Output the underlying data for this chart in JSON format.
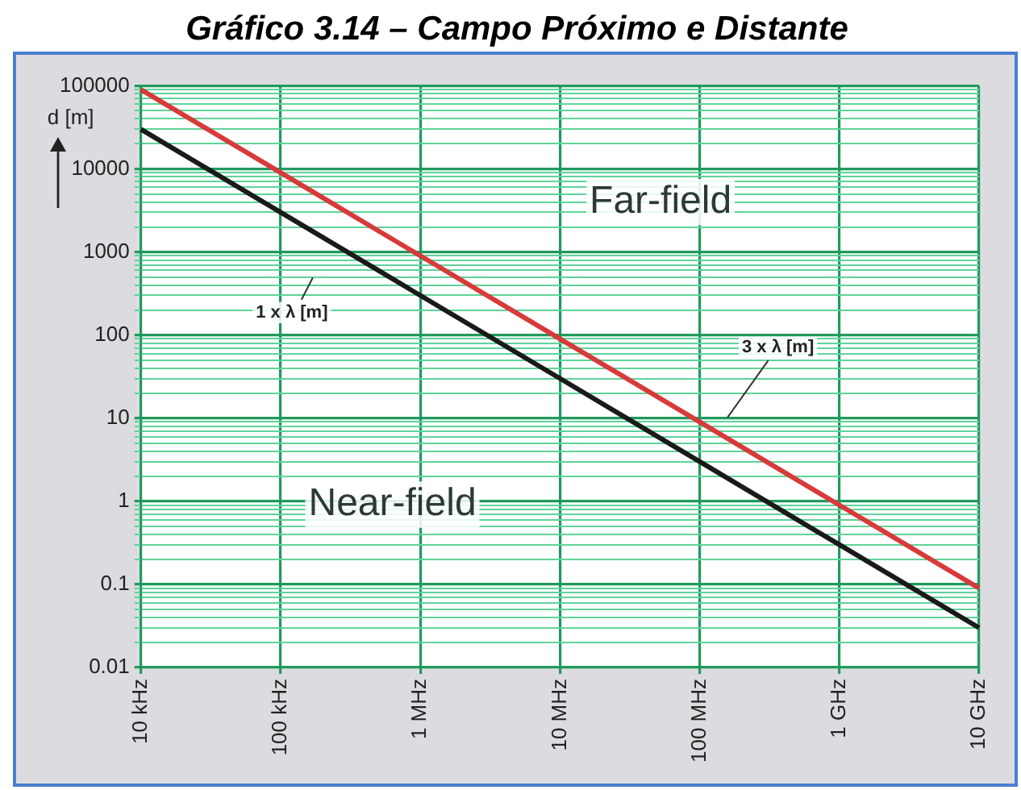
{
  "chart_data": {
    "type": "line",
    "title": "Gráfico 3.14 – Campo Próximo e Distante",
    "ylabel": "d [m]",
    "categories": [
      "10 kHz",
      "100 kHz",
      "1 MHz",
      "10 MHz",
      "100 MHz",
      "1 GHz",
      "10 GHz"
    ],
    "series": [
      {
        "color": "#1a1a1a",
        "values": [
          30000,
          3000,
          300,
          30,
          3,
          0.3,
          0.03
        ]
      },
      {
        "color": "#d83a3a",
        "values": [
          90000,
          9000,
          900,
          90,
          9,
          0.9,
          0.09
        ]
      }
    ],
    "annotations": [
      "1 x λ [m]",
      "3 x λ [m]",
      "Far-field",
      "Near-field"
    ],
    "log": "y",
    "grid": true,
    "legend": false,
    "marker": "none",
    "line_style": "solid",
    "ylim": [
      0.01,
      100000
    ],
    "yticks": [
      0.01,
      {
        "value": 0.02,
        "label": null
      },
      {
        "value": 0.03,
        "label": null
      },
      {
        "value": 0.04,
        "label": null
      },
      {
        "value": 0.05,
        "label": null
      },
      {
        "value": 0.06,
        "label": null
      },
      {
        "value": 0.07,
        "label": null
      },
      {
        "value": 0.08,
        "label": null
      },
      {
        "value": 0.09,
        "label": null
      },
      0.1,
      {
        "value": 0.2,
        "label": null
      },
      {
        "value": 0.3,
        "label": null
      },
      {
        "value": 0.4,
        "label": null
      },
      {
        "value": 0.5,
        "label": null
      },
      {
        "value": 0.6,
        "label": null
      },
      {
        "value": 0.7,
        "label": null
      },
      {
        "value": 0.8,
        "label": null
      },
      {
        "value": 0.9,
        "label": null
      },
      1,
      {
        "value": 2,
        "label": null
      },
      {
        "value": 3,
        "label": null
      },
      {
        "value": 4,
        "label": null
      },
      {
        "value": 5,
        "label": null
      },
      {
        "value": 6,
        "label": null
      },
      {
        "value": 7,
        "label": null
      },
      {
        "value": 8,
        "label": null
      },
      {
        "value": 9,
        "label": null
      },
      10,
      {
        "value": 20,
        "label": null
      },
      {
        "value": 30,
        "label": null
      },
      {
        "value": 40,
        "label": null
      },
      {
        "value": 50,
        "label": null
      },
      {
        "value": 60,
        "label": null
      },
      {
        "value": 70,
        "label": null
      },
      {
        "value": 80,
        "label": null
      },
      {
        "value": 90,
        "label": null
      },
      100,
      {
        "value": 200,
        "label": null
      },
      {
        "value": 300,
        "label": null
      },
      {
        "value": 400,
        "label": null
      },
      {
        "value": 500,
        "label": null
      },
      {
        "value": 600,
        "label": null
      },
      {
        "value": 700,
        "label": null
      },
      {
        "value": 800,
        "label": null
      },
      {
        "value": 900,
        "label": null
      },
      1000,
      {
        "value": 2000,
        "label": null
      },
      {
        "value": 3000,
        "label": null
      },
      {
        "value": 4000,
        "label": null
      },
      {
        "value": 5000,
        "label": null
      },
      {
        "value": 6000,
        "label": null
      },
      {
        "value": 7000,
        "label": null
      },
      {
        "value": 8000,
        "label": null
      },
      {
        "value": 9000,
        "label": null
      },
      10000,
      {
        "value": 20000,
        "label": null
      },
      {
        "value": 30000,
        "label": null
      },
      {
        "value": 40000,
        "label": null
      },
      {
        "value": 50000,
        "label": null
      },
      {
        "value": 60000,
        "label": null
      },
      {
        "value": 70000,
        "label": null
      },
      {
        "value": 80000,
        "label": null
      },
      {
        "value": 90000,
        "label": null
      },
      100000
    ]
  }
}
